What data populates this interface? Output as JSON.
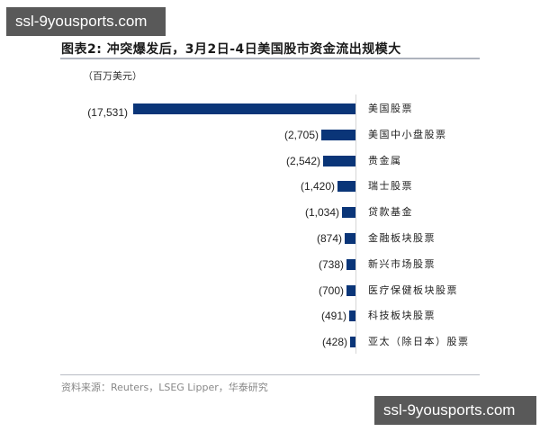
{
  "watermark": {
    "text": "ssl-9yousports.com"
  },
  "header": {
    "title": "图表2:  冲突爆发后，3月2日-4日美国股市资金流出规模大",
    "unit": "（百万美元）"
  },
  "footer": {
    "source": "资料来源：Reuters，LSEG Lipper，华泰研究"
  },
  "chart_data": {
    "type": "bar",
    "orientation": "horizontal",
    "title": "冲突爆发后，3月2日-4日美国股市资金流出规模大",
    "subtitle": "图表2",
    "unit": "百万美元",
    "xlabel": "",
    "ylabel": "",
    "grid": false,
    "legend": null,
    "bar_color": "#0a3578",
    "categories": [
      "美国股票",
      "美国中小盘股票",
      "贵金属",
      "瑞士股票",
      "贷款基金",
      "金融板块股票",
      "新兴市场股票",
      "医疗保健板块股票",
      "科技板块股票",
      "亚太（除日本）股票"
    ],
    "values": [
      -17531,
      -2705,
      -2542,
      -1420,
      -1034,
      -874,
      -738,
      -700,
      -491,
      -428
    ],
    "labels": [
      "(17,531)",
      "(2,705)",
      "(2,542)",
      "(1,420)",
      "(1,034)",
      "(874)",
      "(738)",
      "(700)",
      "(491)",
      "(428)"
    ],
    "source": "资料来源：Reuters，LSEG Lipper，华泰研究"
  }
}
